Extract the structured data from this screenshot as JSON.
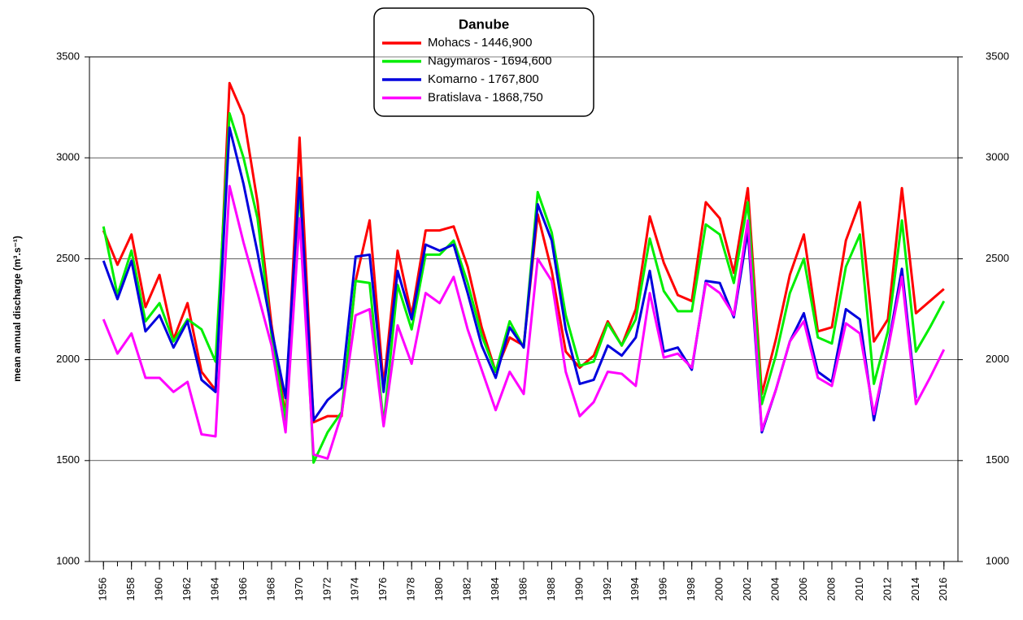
{
  "chart_data": {
    "type": "line",
    "title": "Danube",
    "y_label": "mean annual discharge (m³.s⁻¹)",
    "x": [
      1956,
      1957,
      1958,
      1959,
      1960,
      1961,
      1962,
      1963,
      1964,
      1965,
      1966,
      1967,
      1968,
      1969,
      1970,
      1971,
      1972,
      1973,
      1974,
      1975,
      1976,
      1977,
      1978,
      1979,
      1980,
      1981,
      1982,
      1983,
      1984,
      1985,
      1986,
      1987,
      1988,
      1989,
      1990,
      1991,
      1992,
      1993,
      1994,
      1995,
      1996,
      1997,
      1998,
      1999,
      2000,
      2001,
      2002,
      2003,
      2004,
      2005,
      2006,
      2007,
      2008,
      2009,
      2010,
      2011,
      2012,
      2013,
      2014,
      2015,
      2016
    ],
    "xlim": [
      1955,
      2017
    ],
    "xticks": [
      1956,
      1958,
      1960,
      1962,
      1964,
      1966,
      1968,
      1970,
      1972,
      1974,
      1976,
      1978,
      1980,
      1982,
      1984,
      1986,
      1988,
      1990,
      1992,
      1994,
      1996,
      1998,
      2000,
      2002,
      2004,
      2006,
      2008,
      2010,
      2012,
      2014,
      2016
    ],
    "ylim": [
      1000,
      3500
    ],
    "yticks": [
      1000,
      1500,
      2000,
      2500,
      3000,
      3500
    ],
    "y2lim": [
      1000,
      3500
    ],
    "y2ticks": [
      1000,
      1500,
      2000,
      2500,
      3000,
      3500
    ],
    "grid": true,
    "legend": "top",
    "series": [
      {
        "name": "Mohacs - 1446,900",
        "color": "#ff0000",
        "values": [
          2640,
          2470,
          2620,
          2260,
          2420,
          2100,
          2280,
          1940,
          1850,
          3370,
          3210,
          2780,
          2170,
          1720,
          3100,
          1690,
          1720,
          1720,
          2390,
          2690,
          1870,
          2540,
          2220,
          2640,
          2640,
          2660,
          2460,
          2160,
          1940,
          2110,
          2070,
          2720,
          2440,
          2040,
          1960,
          2020,
          2190,
          2070,
          2250,
          2710,
          2480,
          2320,
          2290,
          2780,
          2700,
          2430,
          2850,
          1830,
          2100,
          2420,
          2620,
          2140,
          2160,
          2590,
          2780,
          2090,
          2200,
          2850,
          2230,
          2290,
          2350
        ]
      },
      {
        "name": "Nagymaros - 1694,600",
        "color": "#00ee00",
        "values": [
          2660,
          2320,
          2540,
          2190,
          2280,
          2090,
          2200,
          2150,
          1990,
          3220,
          3000,
          2700,
          2120,
          1700,
          2860,
          1490,
          1640,
          1740,
          2390,
          2380,
          1680,
          2370,
          2150,
          2520,
          2520,
          2590,
          2380,
          2120,
          1940,
          2190,
          2060,
          2830,
          2630,
          2220,
          1970,
          1990,
          2180,
          2070,
          2200,
          2600,
          2340,
          2240,
          2240,
          2670,
          2620,
          2380,
          2780,
          1780,
          2020,
          2330,
          2500,
          2110,
          2080,
          2460,
          2620,
          1880,
          2140,
          2690,
          2040,
          2160,
          2290
        ]
      },
      {
        "name": "Komarno - 1767,800",
        "color": "#0000dd",
        "values": [
          2490,
          2300,
          2490,
          2140,
          2220,
          2060,
          2190,
          1900,
          1840,
          3150,
          2870,
          2530,
          2150,
          1810,
          2900,
          1700,
          1800,
          1860,
          2510,
          2520,
          1840,
          2440,
          2200,
          2570,
          2540,
          2570,
          2330,
          2070,
          1910,
          2160,
          2060,
          2770,
          2590,
          2150,
          1880,
          1900,
          2070,
          2020,
          2110,
          2440,
          2040,
          2060,
          1950,
          2390,
          2380,
          2210,
          2640,
          1640,
          1850,
          2090,
          2230,
          1940,
          1890,
          2250,
          2200,
          1700,
          2060,
          2450,
          1810,
          null,
          null
        ]
      },
      {
        "name": "Bratislava - 1868,750",
        "color": "#ff00ff",
        "values": [
          2200,
          2030,
          2130,
          1910,
          1910,
          1840,
          1890,
          1630,
          1620,
          2860,
          2580,
          2330,
          2070,
          1640,
          2700,
          1530,
          1510,
          1730,
          2220,
          2250,
          1670,
          2170,
          1980,
          2330,
          2280,
          2410,
          2150,
          1950,
          1750,
          1940,
          1830,
          2500,
          2390,
          1940,
          1720,
          1790,
          1940,
          1930,
          1870,
          2330,
          2010,
          2030,
          1960,
          2380,
          2330,
          2220,
          2690,
          1650,
          1850,
          2090,
          2190,
          1910,
          1870,
          2180,
          2130,
          1730,
          2050,
          2410,
          1780,
          1910,
          2050
        ]
      }
    ]
  }
}
